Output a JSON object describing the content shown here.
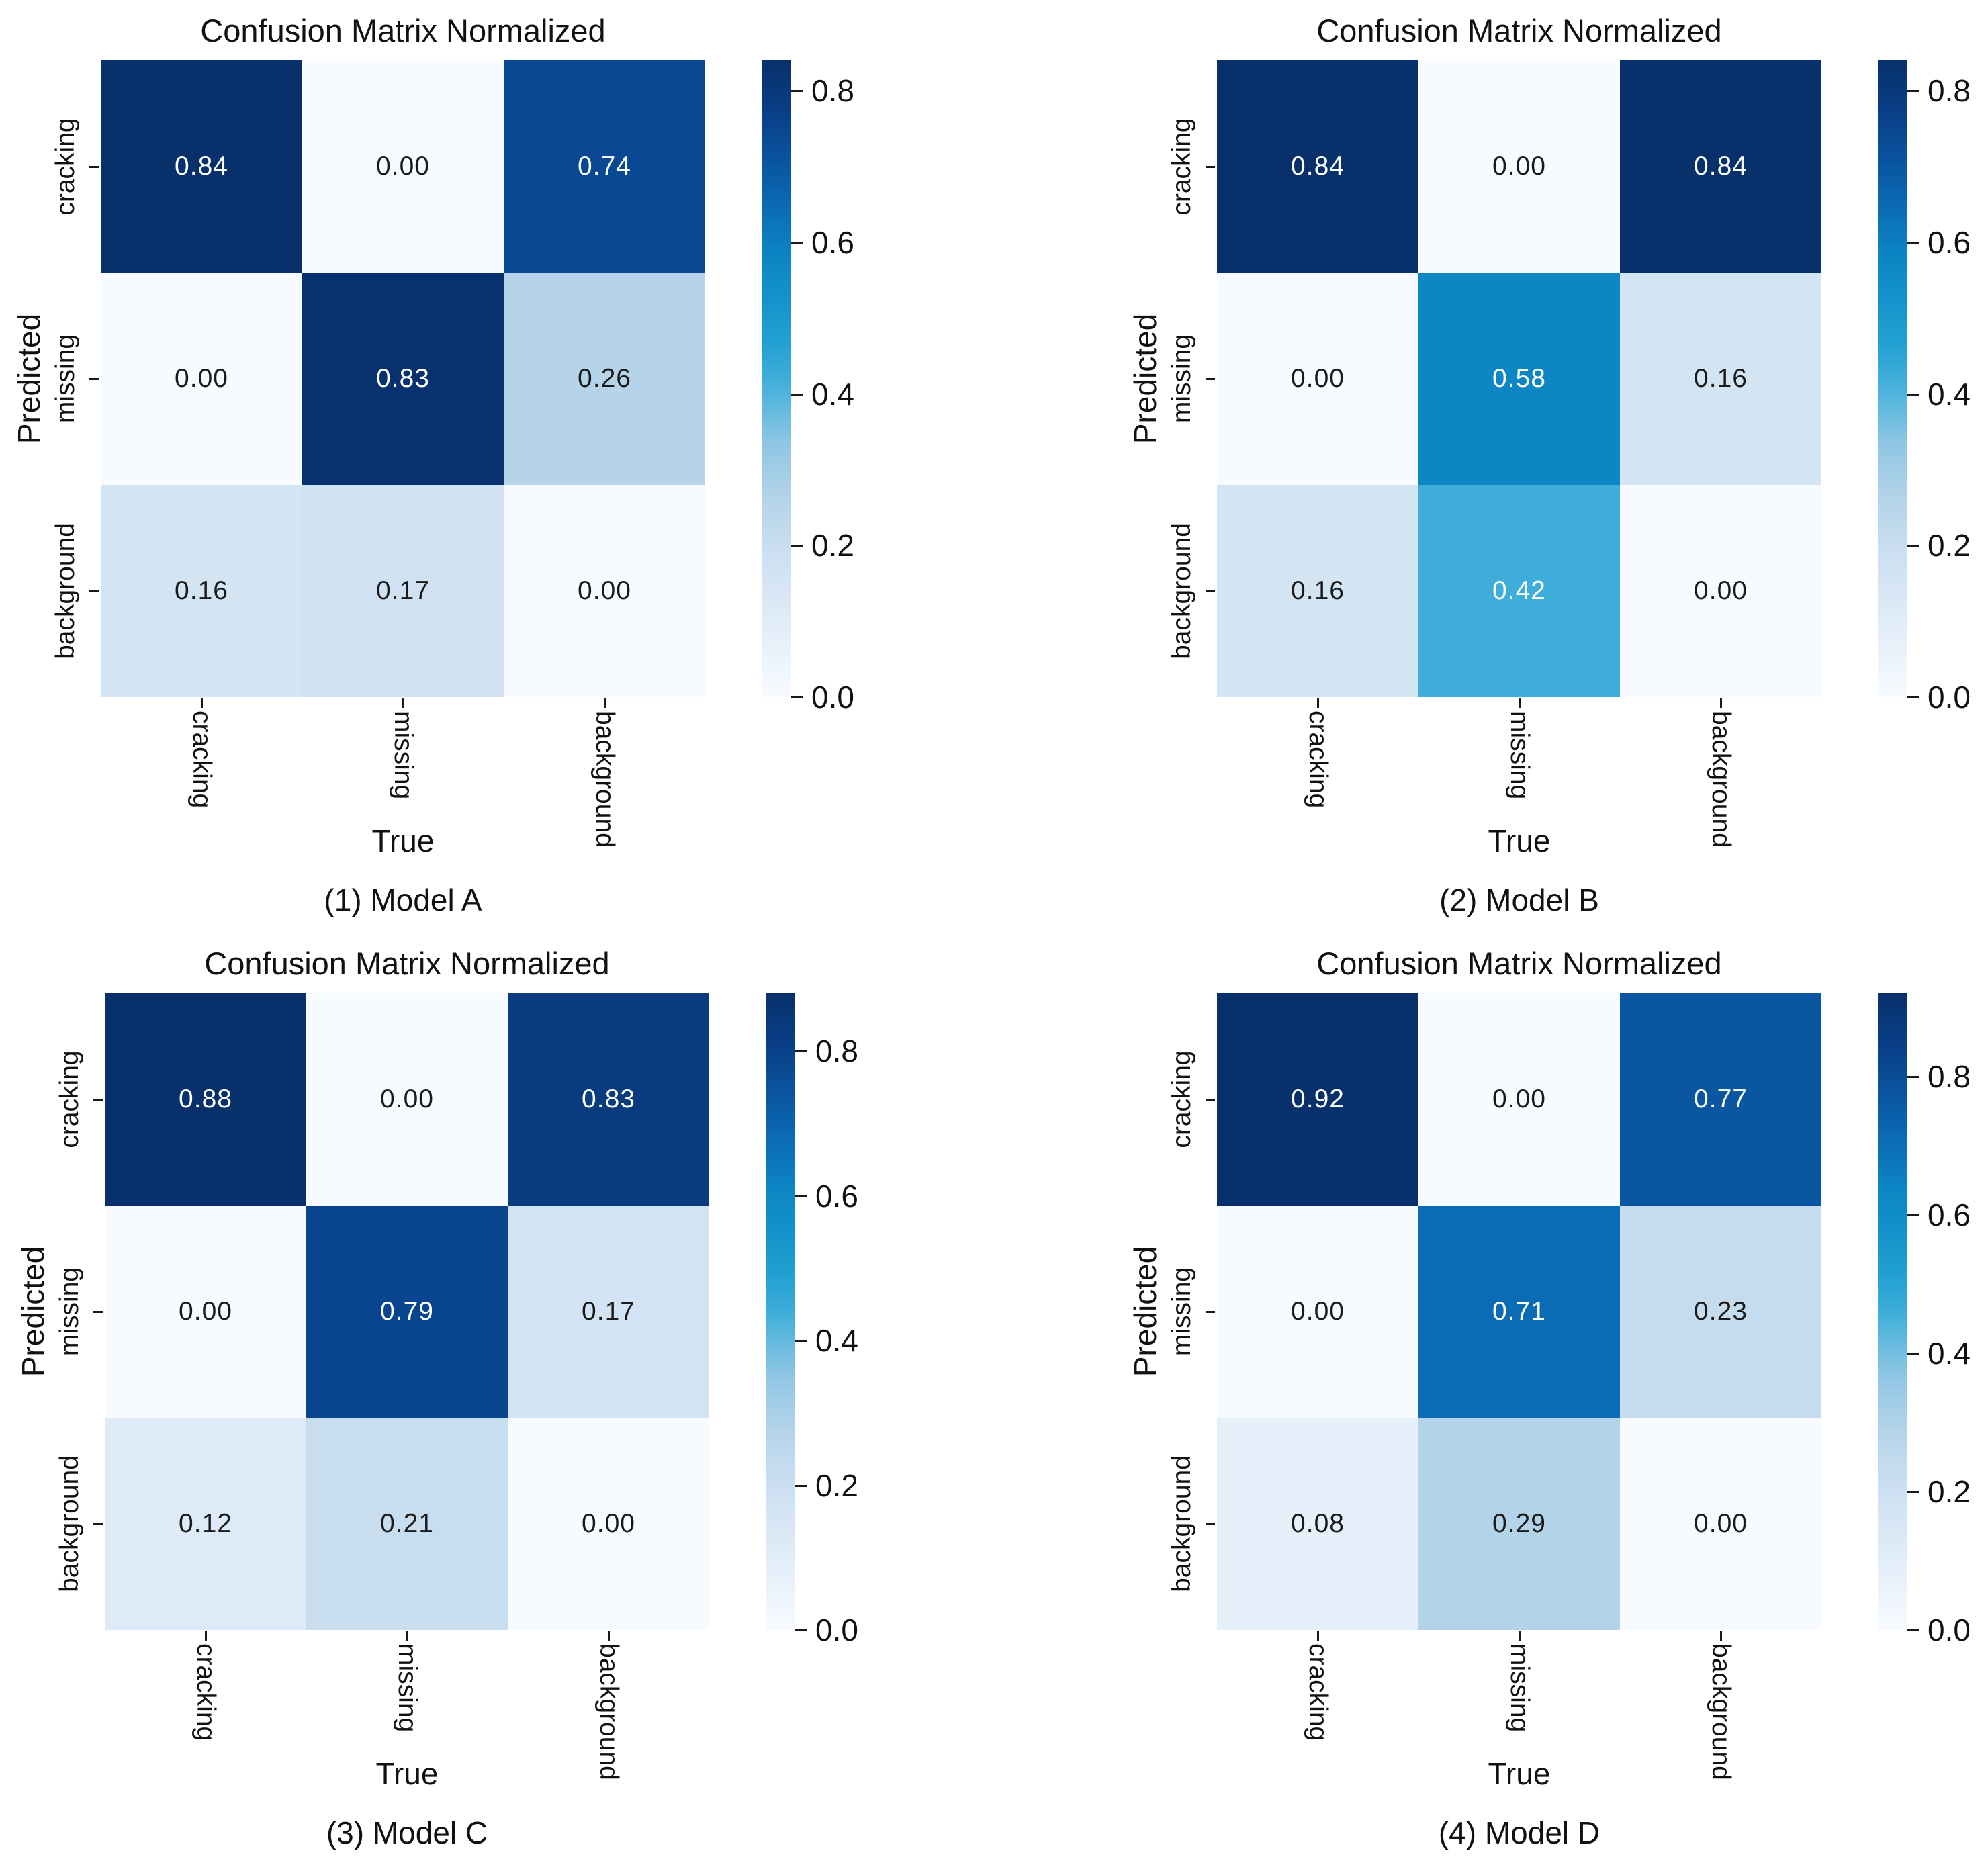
{
  "figure": {
    "background": "#ffffff",
    "layout": "2x2-grid-of-confusion-matrices"
  },
  "chart_data": [
    {
      "type": "heatmap",
      "title": "Confusion Matrix Normalized",
      "caption": "(1) Model A",
      "xlabel": "True",
      "ylabel": "Predicted",
      "x_categories": [
        "cracking",
        "missing",
        "background"
      ],
      "y_categories": [
        "cracking",
        "missing",
        "background"
      ],
      "values": [
        [
          0.84,
          0.0,
          0.74
        ],
        [
          0.0,
          0.83,
          0.26
        ],
        [
          0.16,
          0.17,
          0.0
        ]
      ],
      "vmin": 0.0,
      "vmax": 0.84,
      "colorbar_ticks": [
        0.0,
        0.2,
        0.4,
        0.6,
        0.8
      ],
      "legend_position": "right-colorbar",
      "grid": false
    },
    {
      "type": "heatmap",
      "title": "Confusion Matrix Normalized",
      "caption": "(2) Model B",
      "xlabel": "True",
      "ylabel": "Predicted",
      "x_categories": [
        "cracking",
        "missing",
        "background"
      ],
      "y_categories": [
        "cracking",
        "missing",
        "background"
      ],
      "values": [
        [
          0.84,
          0.0,
          0.84
        ],
        [
          0.0,
          0.58,
          0.16
        ],
        [
          0.16,
          0.42,
          0.0
        ]
      ],
      "vmin": 0.0,
      "vmax": 0.84,
      "colorbar_ticks": [
        0.0,
        0.2,
        0.4,
        0.6,
        0.8
      ],
      "legend_position": "right-colorbar",
      "grid": false
    },
    {
      "type": "heatmap",
      "title": "Confusion Matrix Normalized",
      "caption": "(3) Model C",
      "xlabel": "True",
      "ylabel": "Predicted",
      "x_categories": [
        "cracking",
        "missing",
        "background"
      ],
      "y_categories": [
        "cracking",
        "missing",
        "background"
      ],
      "values": [
        [
          0.88,
          0.0,
          0.83
        ],
        [
          0.0,
          0.79,
          0.17
        ],
        [
          0.12,
          0.21,
          0.0
        ]
      ],
      "vmin": 0.0,
      "vmax": 0.88,
      "colorbar_ticks": [
        0.0,
        0.2,
        0.4,
        0.6,
        0.8
      ],
      "legend_position": "right-colorbar",
      "grid": false
    },
    {
      "type": "heatmap",
      "title": "Confusion Matrix Normalized",
      "caption": "(4) Model D",
      "xlabel": "True",
      "ylabel": "Predicted",
      "x_categories": [
        "cracking",
        "missing",
        "background"
      ],
      "y_categories": [
        "cracking",
        "missing",
        "background"
      ],
      "values": [
        [
          0.92,
          0.0,
          0.77
        ],
        [
          0.0,
          0.71,
          0.23
        ],
        [
          0.08,
          0.29,
          0.0
        ]
      ],
      "vmin": 0.0,
      "vmax": 0.92,
      "colorbar_ticks": [
        0.0,
        0.2,
        0.4,
        0.6,
        0.8
      ],
      "legend_position": "right-colorbar",
      "grid": false
    }
  ],
  "colors": {
    "background": "#ffffff",
    "text": "#111111",
    "cell_text_dark": "#1a1a1a",
    "cell_text_light": "#ffffff",
    "colormap_name": "blues-cyan",
    "colormap_stops": [
      [
        0.0,
        "#f7fbff"
      ],
      [
        0.13,
        "#deebf7"
      ],
      [
        0.22,
        "#cde0f1"
      ],
      [
        0.31,
        "#b5d4e9"
      ],
      [
        0.4,
        "#8fc6e4"
      ],
      [
        0.46,
        "#5db8dd"
      ],
      [
        0.5,
        "#3eadd9"
      ],
      [
        0.56,
        "#21a0d2"
      ],
      [
        0.63,
        "#1292ca"
      ],
      [
        0.69,
        "#0d86c4"
      ],
      [
        0.77,
        "#0b6cb4"
      ],
      [
        0.84,
        "#0a55a0"
      ],
      [
        0.91,
        "#09418a"
      ],
      [
        1.0,
        "#08306b"
      ]
    ]
  }
}
